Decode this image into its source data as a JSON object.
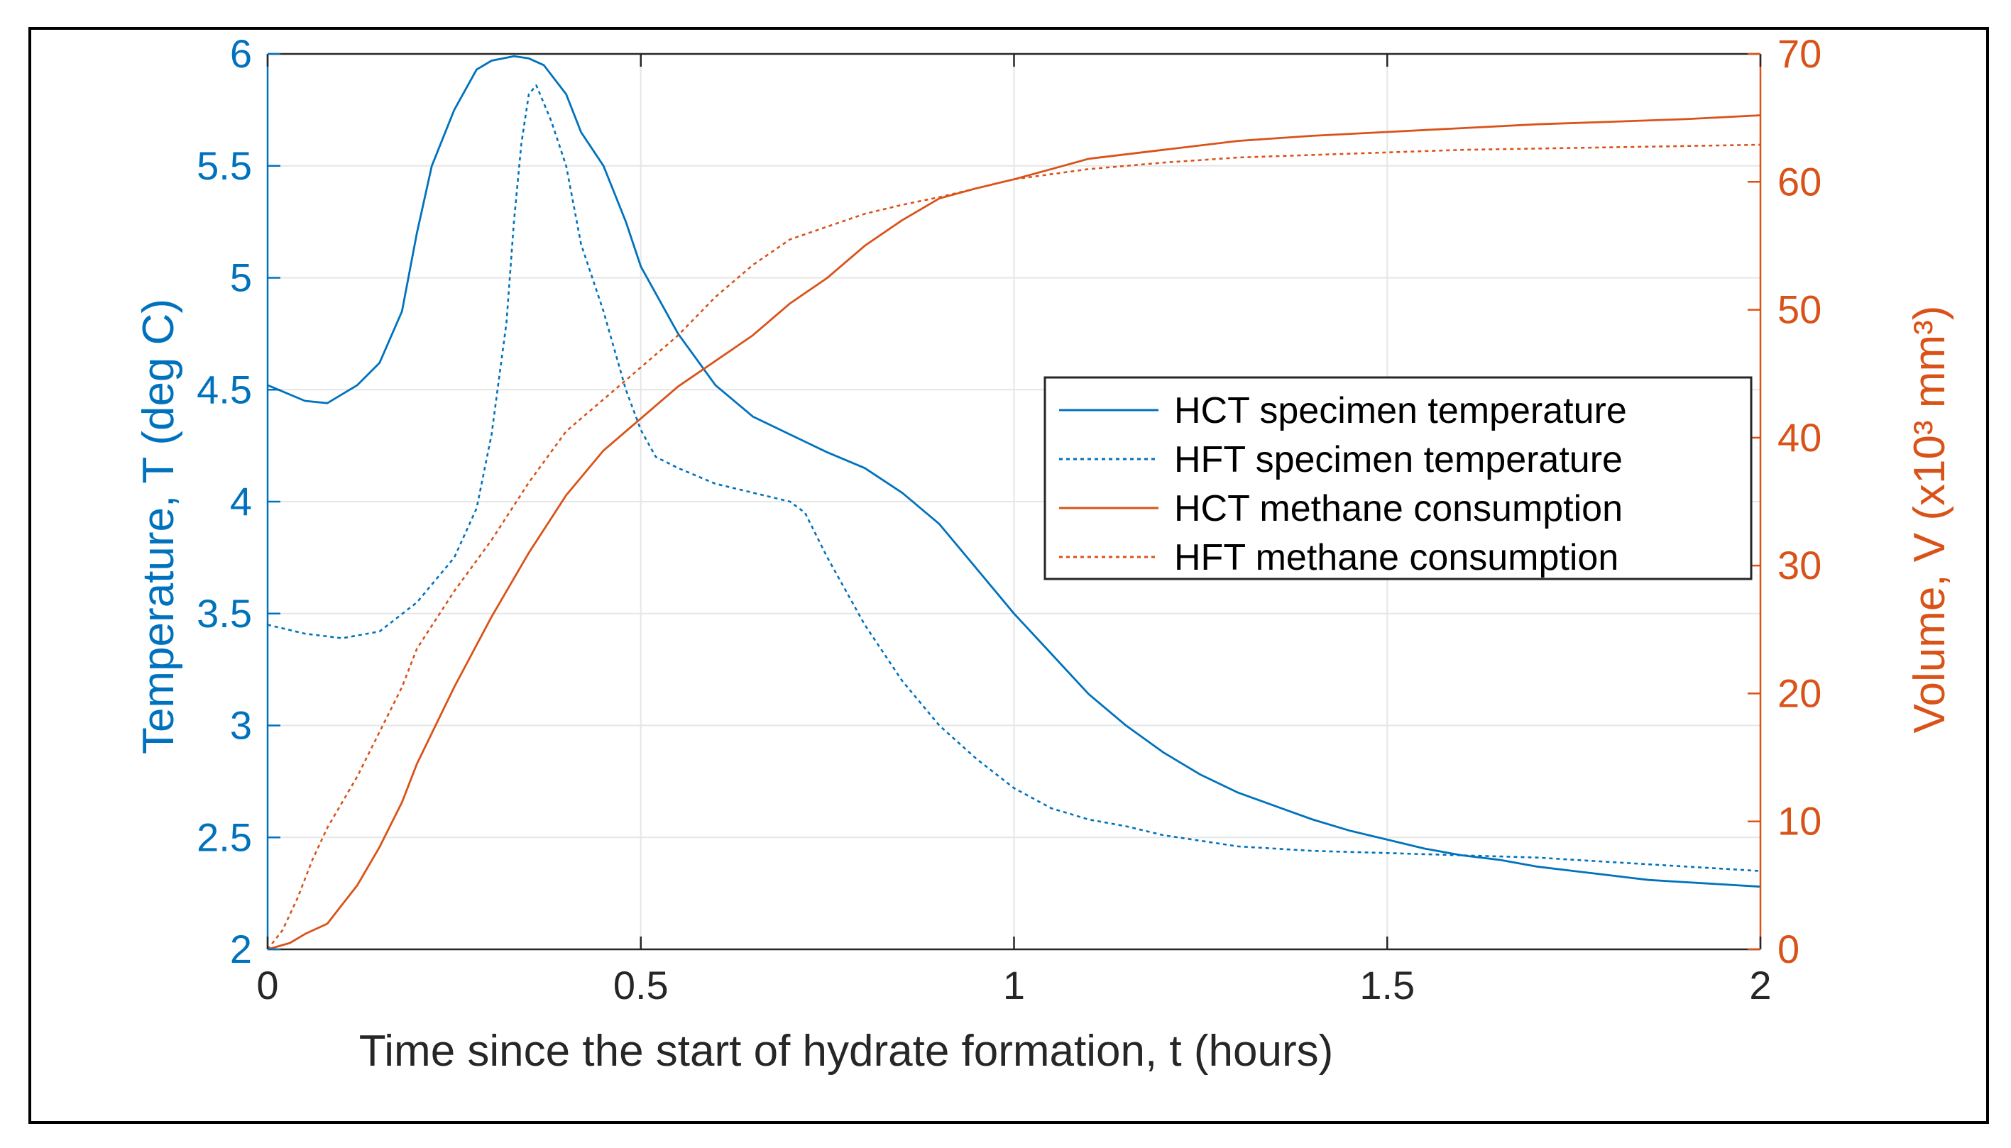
{
  "chart_data": {
    "type": "line",
    "title": "",
    "xlabel": "Time since the start of hydrate formation, t (hours)",
    "ylabel_left": "Temperature, T (deg C)",
    "ylabel_right": "Volume, V (x10³ mm³)",
    "xlim": [
      0,
      2
    ],
    "ylim_left": [
      2,
      6
    ],
    "ylim_right": [
      0,
      70
    ],
    "x_ticks": [
      0,
      0.5,
      1,
      1.5,
      2
    ],
    "x_tick_labels": [
      "0",
      "0.5",
      "1",
      "1.5",
      "2"
    ],
    "y_left_ticks": [
      2,
      2.5,
      3,
      3.5,
      4,
      4.5,
      5,
      5.5,
      6
    ],
    "y_left_tick_labels": [
      "2",
      "2.5",
      "3",
      "3.5",
      "4",
      "4.5",
      "5",
      "5.5",
      "6"
    ],
    "y_right_ticks": [
      0,
      10,
      20,
      30,
      40,
      50,
      60,
      70
    ],
    "y_right_tick_labels": [
      "0",
      "10",
      "20",
      "30",
      "40",
      "50",
      "60",
      "70"
    ],
    "grid": true,
    "legend_position": "center-right",
    "colors": {
      "left_axis": "#0072BD",
      "right_axis": "#D95319",
      "grid": "#e6e6e6",
      "axes": "#262626"
    },
    "series": [
      {
        "name": "HCT specimen temperature",
        "axis": "left",
        "style": "solid",
        "color": "#0072BD",
        "x": [
          0,
          0.05,
          0.08,
          0.12,
          0.15,
          0.18,
          0.2,
          0.22,
          0.25,
          0.28,
          0.3,
          0.33,
          0.35,
          0.37,
          0.4,
          0.42,
          0.45,
          0.48,
          0.5,
          0.55,
          0.6,
          0.65,
          0.7,
          0.75,
          0.8,
          0.85,
          0.9,
          0.95,
          1.0,
          1.05,
          1.1,
          1.15,
          1.2,
          1.25,
          1.3,
          1.35,
          1.4,
          1.45,
          1.5,
          1.55,
          1.6,
          1.65,
          1.7,
          1.75,
          1.8,
          1.85,
          1.9,
          1.95,
          2.0
        ],
        "y": [
          4.52,
          4.45,
          4.44,
          4.52,
          4.62,
          4.85,
          5.2,
          5.5,
          5.75,
          5.93,
          5.97,
          5.99,
          5.98,
          5.95,
          5.82,
          5.65,
          5.5,
          5.25,
          5.05,
          4.75,
          4.52,
          4.38,
          4.3,
          4.22,
          4.15,
          4.04,
          3.9,
          3.7,
          3.5,
          3.32,
          3.14,
          3.0,
          2.88,
          2.78,
          2.7,
          2.64,
          2.58,
          2.53,
          2.49,
          2.45,
          2.42,
          2.4,
          2.37,
          2.35,
          2.33,
          2.31,
          2.3,
          2.29,
          2.28
        ]
      },
      {
        "name": "HFT specimen temperature",
        "axis": "left",
        "style": "dotted",
        "color": "#0072BD",
        "x": [
          0,
          0.05,
          0.1,
          0.15,
          0.2,
          0.25,
          0.28,
          0.3,
          0.32,
          0.33,
          0.34,
          0.35,
          0.36,
          0.38,
          0.4,
          0.42,
          0.45,
          0.48,
          0.5,
          0.52,
          0.55,
          0.6,
          0.65,
          0.7,
          0.72,
          0.75,
          0.8,
          0.85,
          0.9,
          0.95,
          1.0,
          1.05,
          1.1,
          1.15,
          1.2,
          1.3,
          1.4,
          1.5,
          1.6,
          1.7,
          1.8,
          1.9,
          2.0
        ],
        "y": [
          3.45,
          3.41,
          3.39,
          3.42,
          3.55,
          3.75,
          3.97,
          4.3,
          4.8,
          5.25,
          5.6,
          5.82,
          5.86,
          5.7,
          5.5,
          5.15,
          4.85,
          4.5,
          4.32,
          4.2,
          4.15,
          4.08,
          4.04,
          4.0,
          3.95,
          3.75,
          3.45,
          3.2,
          3.0,
          2.85,
          2.72,
          2.63,
          2.58,
          2.55,
          2.51,
          2.46,
          2.44,
          2.43,
          2.42,
          2.41,
          2.39,
          2.37,
          2.35
        ]
      },
      {
        "name": "HCT methane consumption",
        "axis": "right",
        "style": "solid",
        "color": "#D95319",
        "x": [
          0,
          0.03,
          0.05,
          0.08,
          0.1,
          0.12,
          0.15,
          0.18,
          0.2,
          0.25,
          0.3,
          0.35,
          0.4,
          0.45,
          0.5,
          0.55,
          0.6,
          0.65,
          0.7,
          0.75,
          0.8,
          0.85,
          0.9,
          0.95,
          1.0,
          1.05,
          1.1,
          1.2,
          1.3,
          1.4,
          1.5,
          1.6,
          1.7,
          1.8,
          1.9,
          2.0
        ],
        "y": [
          0,
          0.5,
          1.2,
          2.0,
          3.5,
          5.0,
          8.0,
          11.5,
          14.5,
          20.5,
          26.0,
          31.0,
          35.5,
          39.0,
          41.5,
          44.0,
          46.0,
          48.0,
          50.5,
          52.5,
          55.0,
          57.0,
          58.7,
          59.5,
          60.2,
          61.0,
          61.8,
          62.5,
          63.2,
          63.6,
          63.9,
          64.2,
          64.5,
          64.7,
          64.9,
          65.2
        ]
      },
      {
        "name": "HFT methane consumption",
        "axis": "right",
        "style": "dotted",
        "color": "#D95319",
        "x": [
          0,
          0.02,
          0.04,
          0.06,
          0.08,
          0.1,
          0.12,
          0.15,
          0.18,
          0.2,
          0.25,
          0.3,
          0.35,
          0.4,
          0.45,
          0.5,
          0.55,
          0.6,
          0.65,
          0.7,
          0.75,
          0.8,
          0.85,
          0.9,
          0.95,
          1.0,
          1.1,
          1.2,
          1.3,
          1.4,
          1.5,
          1.6,
          1.7,
          1.8,
          1.9,
          2.0
        ],
        "y": [
          0,
          1.5,
          4.0,
          7.0,
          9.5,
          11.5,
          13.5,
          17.0,
          20.5,
          23.5,
          28.0,
          32.0,
          36.5,
          40.5,
          43.0,
          45.5,
          48.0,
          51.0,
          53.5,
          55.5,
          56.5,
          57.5,
          58.2,
          58.8,
          59.5,
          60.2,
          61.0,
          61.5,
          61.9,
          62.1,
          62.3,
          62.5,
          62.6,
          62.7,
          62.8,
          62.9
        ]
      }
    ]
  }
}
